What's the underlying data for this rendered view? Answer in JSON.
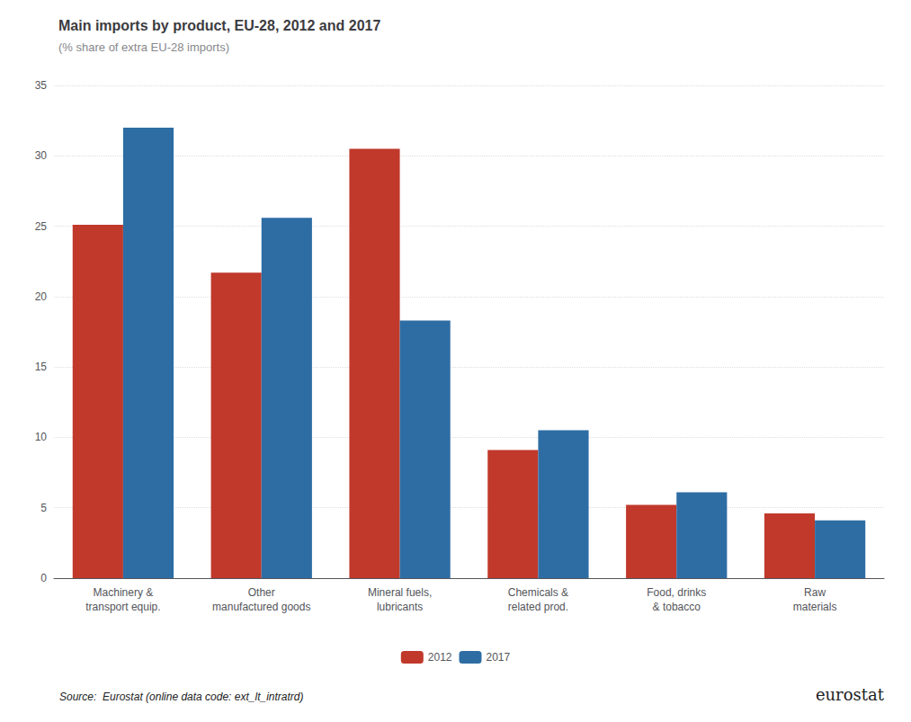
{
  "chart_data": {
    "type": "bar",
    "title": "Main imports by product, EU-28, 2012 and 2017",
    "subtitle": "(% share of extra EU-28 imports)",
    "categories": [
      "Machinery &\ntransport equip.",
      "Other\nmanufactured goods",
      "Mineral fuels,\nlubricants",
      "Chemicals &\nrelated prod.",
      "Food, drinks\n& tobacco",
      "Raw\nmaterials"
    ],
    "series": [
      {
        "name": "2012",
        "color": "#c0392b",
        "values": [
          25.1,
          21.7,
          30.5,
          9.1,
          5.2,
          4.6
        ]
      },
      {
        "name": "2017",
        "color": "#2e6da4",
        "values": [
          32.0,
          25.6,
          18.3,
          10.5,
          6.1,
          4.1
        ]
      }
    ],
    "ylim": [
      0,
      35
    ],
    "yticks": [
      0,
      5,
      10,
      15,
      20,
      25,
      30,
      35
    ],
    "grid": true,
    "legend": "bottom",
    "annotations": [
      "Source:  Eurostat (online data code: ext_lt_intratrd)",
      "eurostat"
    ]
  }
}
